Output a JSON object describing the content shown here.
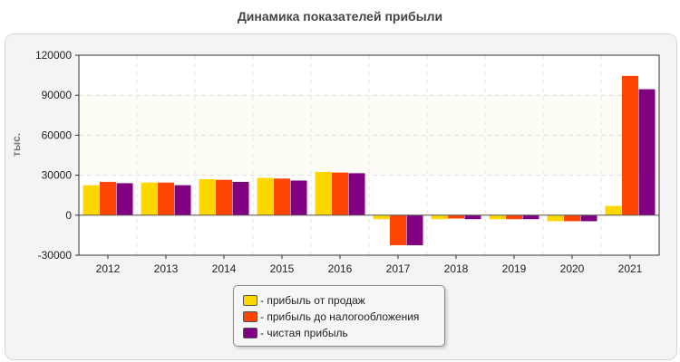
{
  "chart_data": {
    "type": "bar",
    "title": "Динамика показателей прибыли",
    "ylabel": "тыс.",
    "xlabel": "",
    "categories": [
      "2012",
      "2013",
      "2014",
      "2015",
      "2016",
      "2017",
      "2018",
      "2019",
      "2020",
      "2021"
    ],
    "ylim": [
      -30000,
      120000
    ],
    "yticks": [
      -30000,
      0,
      30000,
      60000,
      90000,
      120000
    ],
    "grid": true,
    "legend_position": "bottom-center",
    "series": [
      {
        "name": "- прибыль от продаж",
        "color": "#ffd700",
        "values": [
          22500,
          24500,
          27000,
          28000,
          32500,
          -3000,
          -3000,
          -3000,
          -4500,
          7000
        ]
      },
      {
        "name": "- прибыль до налогообложения",
        "color": "#ff4500",
        "values": [
          25000,
          24500,
          26500,
          27500,
          32000,
          -22500,
          -2500,
          -3000,
          -4500,
          104500
        ]
      },
      {
        "name": "- чистая прибыль",
        "color": "#800080",
        "values": [
          24000,
          22500,
          25000,
          26000,
          31500,
          -22500,
          -3000,
          -3000,
          -4500,
          94500
        ]
      }
    ]
  }
}
